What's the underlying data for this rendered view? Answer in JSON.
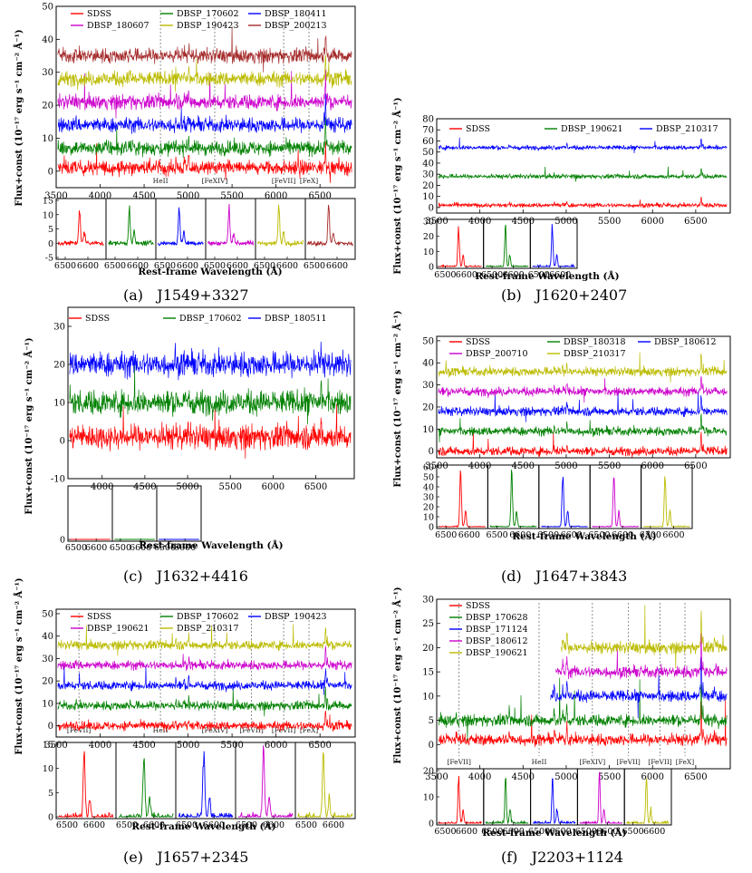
{
  "figure": {
    "captions": [
      "(a)   J1549+3327",
      "(b)   J1620+2407",
      "(c)   J1632+4416",
      "(d)   J1647+3843",
      "(e)   J1657+2345",
      "(f)   J2203+1124"
    ]
  },
  "chart_data": [
    {
      "type": "line",
      "panel": "a",
      "ylabel": "Flux+const (10⁻¹⁷ erg s⁻¹ cm⁻² Å⁻¹)",
      "xlabel": "Rest-frame Wavelength (Å)",
      "xlim": [
        3500,
        6900
      ],
      "ylim": [
        -5,
        50
      ],
      "xticks": [
        3500,
        4000,
        4500,
        5000,
        5500,
        6000,
        6500
      ],
      "yticks": [
        0,
        10,
        20,
        30,
        40,
        50
      ],
      "inset_xticks": [
        6500,
        6600
      ],
      "inset_yticks": [
        -5,
        0,
        5,
        10,
        15
      ],
      "legend_location": "top",
      "series": [
        {
          "name": "SDSS",
          "color": "#ff0000",
          "offset": 1
        },
        {
          "name": "DBSP_170602",
          "color": "#008000",
          "offset": 7
        },
        {
          "name": "DBSP_180411",
          "color": "#0000ff",
          "offset": 14
        },
        {
          "name": "DBSP_180607",
          "color": "#cc00cc",
          "offset": 21
        },
        {
          "name": "DBSP_190423",
          "color": "#bbbb00",
          "offset": 28
        },
        {
          "name": "DBSP_200213",
          "color": "#a52a2a",
          "offset": 35
        }
      ],
      "lines": [
        {
          "label": "HeII",
          "x": 4686
        },
        {
          "label": "[FeXIV]",
          "x": 5303
        },
        {
          "label": "[FeVII]",
          "x": 6087
        },
        {
          "label": "[FeX]",
          "x": 6375
        }
      ]
    },
    {
      "type": "line",
      "panel": "b",
      "ylabel": "Flux+const (10⁻¹⁷ erg s⁻¹ cm⁻² Å⁻¹)",
      "xlabel": "Rest-frame Wavelength (Å)",
      "xlim": [
        3500,
        6900
      ],
      "ylim": [
        -5,
        80
      ],
      "xticks": [
        3500,
        4000,
        4500,
        5000,
        5500,
        6000,
        6500
      ],
      "yticks": [
        0,
        10,
        20,
        30,
        40,
        50,
        60,
        70,
        80
      ],
      "inset_xticks": [
        6500,
        6600
      ],
      "inset_yticks": [
        0,
        10,
        20,
        30
      ],
      "legend_location": "top",
      "series": [
        {
          "name": "SDSS",
          "color": "#ff0000",
          "offset": 2
        },
        {
          "name": "DBSP_190621",
          "color": "#008000",
          "offset": 28
        },
        {
          "name": "DBSP_210317",
          "color": "#0000ff",
          "offset": 54
        }
      ],
      "lines": []
    },
    {
      "type": "line",
      "panel": "c",
      "ylabel": "Flux+const (10⁻¹⁷ erg s⁻¹ cm⁻² Å⁻¹)",
      "xlabel": "Rest-frame Wavelength (Å)",
      "xlim": [
        3600,
        6950
      ],
      "ylim": [
        -10,
        35
      ],
      "xticks": [
        4000,
        4500,
        5000,
        5500,
        6000,
        6500
      ],
      "yticks": [
        -10,
        0,
        10,
        20,
        30
      ],
      "inset_xticks": [
        6500,
        6600
      ],
      "inset_yticks": [
        0
      ],
      "legend_location": "top",
      "series": [
        {
          "name": "SDSS",
          "color": "#ff0000",
          "offset": 1
        },
        {
          "name": "DBSP_170602",
          "color": "#008000",
          "offset": 10
        },
        {
          "name": "DBSP_180511",
          "color": "#0000ff",
          "offset": 20
        }
      ],
      "lines": []
    },
    {
      "type": "line",
      "panel": "d",
      "ylabel": "Flux+const (10⁻¹⁷ erg s⁻¹ cm⁻² Å⁻¹)",
      "xlabel": "Rest-frame Wavelength (Å)",
      "xlim": [
        3500,
        6900
      ],
      "ylim": [
        -3,
        52
      ],
      "xticks": [
        3500,
        4000,
        4500,
        5000,
        5500,
        6000,
        6500
      ],
      "yticks": [
        0,
        10,
        20,
        30,
        40,
        50
      ],
      "inset_xticks": [
        6500,
        6600
      ],
      "inset_yticks": [
        0,
        10,
        20,
        30,
        40,
        50,
        60
      ],
      "legend_location": "top",
      "series": [
        {
          "name": "SDSS",
          "color": "#ff0000",
          "offset": 0
        },
        {
          "name": "DBSP_180318",
          "color": "#008000",
          "offset": 9
        },
        {
          "name": "DBSP_180612",
          "color": "#0000ff",
          "offset": 18
        },
        {
          "name": "DBSP_200710",
          "color": "#cc00cc",
          "offset": 27
        },
        {
          "name": "DBSP_210317",
          "color": "#bbbb00",
          "offset": 36
        }
      ],
      "lines": []
    },
    {
      "type": "line",
      "panel": "e",
      "ylabel": "Flux+const (10⁻¹⁷ erg s⁻¹ cm⁻² Å⁻¹)",
      "xlabel": "Rest-frame Wavelength (Å)",
      "xlim": [
        3500,
        6900
      ],
      "ylim": [
        -5,
        52
      ],
      "xticks": [
        3500,
        4000,
        4500,
        5000,
        5500,
        6000,
        6500
      ],
      "yticks": [
        0,
        10,
        20,
        30,
        40,
        50
      ],
      "inset_xticks": [
        6500,
        6600
      ],
      "inset_yticks": [
        0,
        5,
        10,
        15
      ],
      "legend_location": "top",
      "series": [
        {
          "name": "SDSS",
          "color": "#ff0000",
          "offset": 0
        },
        {
          "name": "DBSP_170602",
          "color": "#008000",
          "offset": 9
        },
        {
          "name": "DBSP_190423",
          "color": "#0000ff",
          "offset": 18
        },
        {
          "name": "DBSP_190621",
          "color": "#cc00cc",
          "offset": 27
        },
        {
          "name": "DBSP_210317",
          "color": "#bbbb00",
          "offset": 36
        }
      ],
      "lines": [
        {
          "label": "[FeVII]",
          "x": 3759
        },
        {
          "label": "HeII",
          "x": 4686
        },
        {
          "label": "[FeXIV]",
          "x": 5303
        },
        {
          "label": "[FeVII]",
          "x": 5721
        },
        {
          "label": "[FeVII]",
          "x": 6087
        },
        {
          "label": "[FeX]",
          "x": 6375
        }
      ]
    },
    {
      "type": "line",
      "panel": "f",
      "ylabel": "Flux+const (10⁻¹⁷ erg s⁻¹ cm⁻² Å⁻¹)",
      "xlabel": "Rest-frame Wavelength (Å)",
      "xlim": [
        3500,
        6900
      ],
      "ylim": [
        -5,
        30
      ],
      "xticks": [
        3500,
        4000,
        4500,
        5000,
        5500,
        6000,
        6500
      ],
      "yticks": [
        0,
        5,
        10,
        15,
        20,
        25,
        30
      ],
      "inset_xticks": [
        6500,
        6600
      ],
      "inset_yticks": [
        0,
        10,
        20
      ],
      "legend_location": "top-left",
      "series": [
        {
          "name": "SDSS",
          "color": "#ff0000",
          "offset": 1
        },
        {
          "name": "DBSP_170628",
          "color": "#008000",
          "offset": 5
        },
        {
          "name": "DBSP_171124",
          "color": "#0000ff",
          "offset": 10
        },
        {
          "name": "DBSP_180612",
          "color": "#cc00cc",
          "offset": 15
        },
        {
          "name": "DBSP_190621",
          "color": "#bbbb00",
          "offset": 20
        }
      ],
      "lines": [
        {
          "label": "[FeVII]",
          "x": 3759
        },
        {
          "label": "HeII",
          "x": 4686
        },
        {
          "label": "[FeXIV]",
          "x": 5303
        },
        {
          "label": "[FeVII]",
          "x": 5721
        },
        {
          "label": "[FeVII]",
          "x": 6087
        },
        {
          "label": "[FeX]",
          "x": 6375
        }
      ]
    }
  ]
}
